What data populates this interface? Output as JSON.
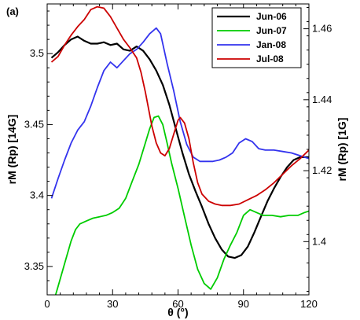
{
  "chart_data": {
    "type": "line",
    "panel_label": "(a)",
    "xlabel": "θ (°)",
    "ylabel_left": "rM (Rp) [14G]",
    "ylabel_right": "rM (Rp) [1G]",
    "xlim": [
      0,
      120
    ],
    "ylim_left": [
      3.33,
      3.535
    ],
    "ylim_right": [
      1.385,
      1.467
    ],
    "x_ticks": [
      0,
      30,
      60,
      90,
      120
    ],
    "y_ticks_left": [
      3.35,
      3.4,
      3.45,
      3.5
    ],
    "y_ticks_right": [
      1.4,
      1.42,
      1.44,
      1.46
    ],
    "legend_position": "top-right",
    "grid": false,
    "series": [
      {
        "name": "Jun-06",
        "color": "#000000",
        "points": [
          [
            2,
            3.497
          ],
          [
            5,
            3.501
          ],
          [
            8,
            3.506
          ],
          [
            11,
            3.51
          ],
          [
            14,
            3.512
          ],
          [
            17,
            3.509
          ],
          [
            20,
            3.507
          ],
          [
            23,
            3.507
          ],
          [
            26,
            3.508
          ],
          [
            29,
            3.506
          ],
          [
            32,
            3.507
          ],
          [
            35,
            3.503
          ],
          [
            38,
            3.502
          ],
          [
            41,
            3.505
          ],
          [
            44,
            3.502
          ],
          [
            47,
            3.496
          ],
          [
            50,
            3.488
          ],
          [
            53,
            3.478
          ],
          [
            56,
            3.464
          ],
          [
            59,
            3.447
          ],
          [
            62,
            3.43
          ],
          [
            65,
            3.415
          ],
          [
            68,
            3.403
          ],
          [
            71,
            3.392
          ],
          [
            74,
            3.38
          ],
          [
            77,
            3.37
          ],
          [
            80,
            3.362
          ],
          [
            83,
            3.357
          ],
          [
            86,
            3.356
          ],
          [
            89,
            3.358
          ],
          [
            92,
            3.364
          ],
          [
            95,
            3.374
          ],
          [
            98,
            3.385
          ],
          [
            101,
            3.396
          ],
          [
            104,
            3.405
          ],
          [
            107,
            3.413
          ],
          [
            110,
            3.42
          ],
          [
            113,
            3.425
          ],
          [
            116,
            3.427
          ],
          [
            120,
            3.427
          ]
        ]
      },
      {
        "name": "Jun-07",
        "color": "#00cc00",
        "points": [
          [
            2,
            3.32
          ],
          [
            5,
            3.336
          ],
          [
            8,
            3.352
          ],
          [
            11,
            3.368
          ],
          [
            13,
            3.376
          ],
          [
            15,
            3.38
          ],
          [
            18,
            3.382
          ],
          [
            21,
            3.384
          ],
          [
            24,
            3.385
          ],
          [
            27,
            3.386
          ],
          [
            30,
            3.388
          ],
          [
            33,
            3.391
          ],
          [
            36,
            3.398
          ],
          [
            39,
            3.41
          ],
          [
            42,
            3.422
          ],
          [
            45,
            3.437
          ],
          [
            47,
            3.447
          ],
          [
            49,
            3.455
          ],
          [
            51,
            3.456
          ],
          [
            53,
            3.45
          ],
          [
            55,
            3.437
          ],
          [
            57,
            3.423
          ],
          [
            60,
            3.405
          ],
          [
            63,
            3.385
          ],
          [
            66,
            3.365
          ],
          [
            69,
            3.348
          ],
          [
            72,
            3.338
          ],
          [
            75,
            3.334
          ],
          [
            78,
            3.342
          ],
          [
            81,
            3.355
          ],
          [
            84,
            3.365
          ],
          [
            87,
            3.374
          ],
          [
            90,
            3.386
          ],
          [
            93,
            3.39
          ],
          [
            96,
            3.388
          ],
          [
            99,
            3.386
          ],
          [
            103,
            3.386
          ],
          [
            107,
            3.385
          ],
          [
            111,
            3.386
          ],
          [
            115,
            3.386
          ],
          [
            118,
            3.388
          ],
          [
            120,
            3.389
          ]
        ]
      },
      {
        "name": "Jan-08",
        "color": "#3333ee",
        "points": [
          [
            2,
            3.398
          ],
          [
            5,
            3.412
          ],
          [
            8,
            3.425
          ],
          [
            11,
            3.437
          ],
          [
            14,
            3.446
          ],
          [
            17,
            3.452
          ],
          [
            20,
            3.463
          ],
          [
            23,
            3.476
          ],
          [
            26,
            3.488
          ],
          [
            29,
            3.494
          ],
          [
            32,
            3.49
          ],
          [
            35,
            3.495
          ],
          [
            38,
            3.5
          ],
          [
            41,
            3.503
          ],
          [
            44,
            3.508
          ],
          [
            47,
            3.514
          ],
          [
            50,
            3.518
          ],
          [
            52,
            3.514
          ],
          [
            55,
            3.493
          ],
          [
            58,
            3.474
          ],
          [
            61,
            3.452
          ],
          [
            64,
            3.436
          ],
          [
            67,
            3.427
          ],
          [
            70,
            3.424
          ],
          [
            73,
            3.424
          ],
          [
            76,
            3.424
          ],
          [
            79,
            3.425
          ],
          [
            82,
            3.427
          ],
          [
            85,
            3.43
          ],
          [
            88,
            3.437
          ],
          [
            91,
            3.44
          ],
          [
            94,
            3.438
          ],
          [
            97,
            3.433
          ],
          [
            100,
            3.432
          ],
          [
            104,
            3.432
          ],
          [
            108,
            3.431
          ],
          [
            112,
            3.43
          ],
          [
            116,
            3.428
          ],
          [
            120,
            3.426
          ]
        ]
      },
      {
        "name": "Jul-08",
        "color": "#cc0000",
        "points": [
          [
            2,
            3.494
          ],
          [
            5,
            3.498
          ],
          [
            8,
            3.506
          ],
          [
            11,
            3.513
          ],
          [
            14,
            3.519
          ],
          [
            17,
            3.524
          ],
          [
            20,
            3.531
          ],
          [
            23,
            3.533
          ],
          [
            26,
            3.532
          ],
          [
            29,
            3.526
          ],
          [
            32,
            3.518
          ],
          [
            35,
            3.51
          ],
          [
            38,
            3.504
          ],
          [
            41,
            3.497
          ],
          [
            43,
            3.487
          ],
          [
            45,
            3.473
          ],
          [
            48,
            3.449
          ],
          [
            50,
            3.437
          ],
          [
            52,
            3.43
          ],
          [
            54,
            3.428
          ],
          [
            56,
            3.433
          ],
          [
            58,
            3.443
          ],
          [
            60,
            3.453
          ],
          [
            61,
            3.455
          ],
          [
            63,
            3.451
          ],
          [
            65,
            3.44
          ],
          [
            67,
            3.423
          ],
          [
            69,
            3.409
          ],
          [
            71,
            3.401
          ],
          [
            74,
            3.396
          ],
          [
            77,
            3.394
          ],
          [
            80,
            3.393
          ],
          [
            84,
            3.393
          ],
          [
            88,
            3.394
          ],
          [
            92,
            3.397
          ],
          [
            96,
            3.4
          ],
          [
            100,
            3.404
          ],
          [
            104,
            3.409
          ],
          [
            108,
            3.415
          ],
          [
            112,
            3.421
          ],
          [
            116,
            3.426
          ],
          [
            120,
            3.432
          ]
        ]
      }
    ]
  }
}
